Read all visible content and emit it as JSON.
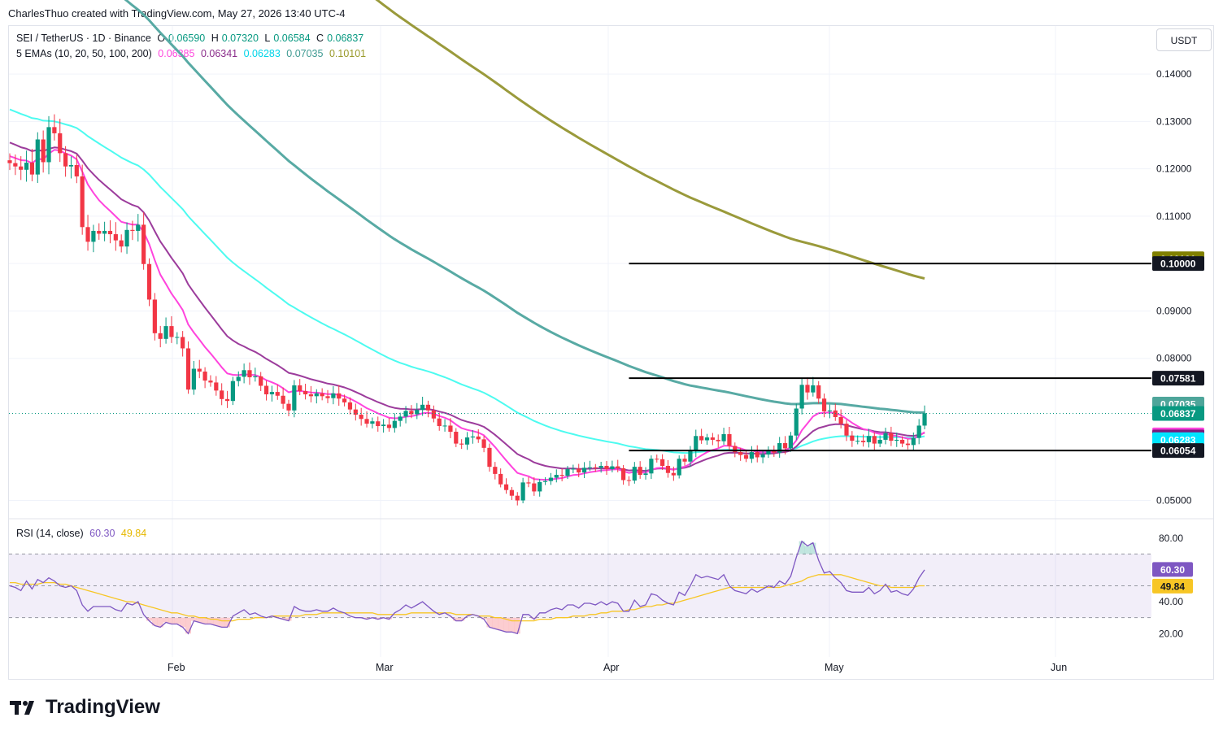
{
  "header": {
    "attribution": "CharlesThuo created with TradingView.com, May 27, 2026 13:40 UTC-4"
  },
  "legend": {
    "symbol_line": "SEI / TetherUS · 1D · Binance",
    "ohlc": {
      "O": "0.06590",
      "H": "0.07320",
      "L": "0.06584",
      "C": "0.06837"
    },
    "ema_label": "5 EMAs (10, 20, 50, 100, 200)",
    "ema_values": [
      "0.06385",
      "0.06341",
      "0.06283",
      "0.07035",
      "0.10101"
    ],
    "rsi_label": "RSI (14, close)",
    "rsi_values": [
      "60.30",
      "49.84"
    ]
  },
  "currency_button": "USDT",
  "logo_text": "TradingView",
  "colors": {
    "up": "#089981",
    "down": "#f23645",
    "ema10": "#ff44dd",
    "ema20": "#9c3c9c",
    "ema50": "#4dfbf0",
    "ema100": "#58aaa4",
    "ema200": "#9a9a3b",
    "rsi": "#7e57c2",
    "rsi_ma": "#f7c625"
  },
  "chart_data": [
    {
      "type": "candlestick",
      "title": "SEI / TetherUS · 1D · Binance",
      "ylim": [
        0.047,
        0.151
      ],
      "x_ticks": [
        "Feb",
        "Mar",
        "Apr",
        "May",
        "Jun"
      ],
      "y_ticks": [
        "0.14000",
        "0.13000",
        "0.12000",
        "0.11000",
        "0.10000",
        "0.09000",
        "0.08000",
        "0.05000"
      ],
      "price_tags": [
        {
          "label": "0.10101",
          "value": 0.10101,
          "color": "#808000"
        },
        {
          "label": "0.10000",
          "value": 0.1,
          "color": "#131722"
        },
        {
          "label": "0.07581",
          "value": 0.07581,
          "color": "#131722"
        },
        {
          "label": "0.07035",
          "value": 0.07035,
          "color": "#4ea59a"
        },
        {
          "label": "0.06837",
          "value": 0.06837,
          "color": "#089981"
        },
        {
          "label": "0.06385",
          "value": 0.06385,
          "color": "#ff44dd"
        },
        {
          "label": "0.06341",
          "value": 0.06341,
          "color": "#7b1a7b"
        },
        {
          "label": "0.06283",
          "value": 0.06283,
          "color": "#00e5ff"
        },
        {
          "label": "0.06054",
          "value": 0.06054,
          "color": "#131722"
        }
      ],
      "horizontal_lines": [
        {
          "value": 0.1,
          "from_day": 111
        },
        {
          "value": 0.07581,
          "from_day": 111
        },
        {
          "value": 0.06054,
          "from_day": 111
        }
      ],
      "last_close": 0.06837,
      "closes": [
        0.1212,
        0.1205,
        0.1198,
        0.1213,
        0.1188,
        0.1262,
        0.1214,
        0.1288,
        0.1275,
        0.1233,
        0.1205,
        0.1208,
        0.1184,
        0.1077,
        0.1046,
        0.1069,
        0.1063,
        0.1069,
        0.1062,
        0.1049,
        0.1036,
        0.1071,
        0.1069,
        0.1082,
        0.0999,
        0.0924,
        0.0853,
        0.0841,
        0.0868,
        0.0845,
        0.0845,
        0.0821,
        0.0734,
        0.0778,
        0.0772,
        0.0753,
        0.0749,
        0.0732,
        0.0714,
        0.071,
        0.0752,
        0.0761,
        0.0775,
        0.076,
        0.0762,
        0.0742,
        0.0724,
        0.0729,
        0.0721,
        0.0704,
        0.069,
        0.0743,
        0.0731,
        0.0724,
        0.072,
        0.0726,
        0.072,
        0.0716,
        0.0726,
        0.0715,
        0.0707,
        0.0692,
        0.0681,
        0.0672,
        0.0662,
        0.0667,
        0.0657,
        0.066,
        0.0653,
        0.0668,
        0.0677,
        0.0689,
        0.0682,
        0.0691,
        0.0702,
        0.069,
        0.0673,
        0.0657,
        0.0658,
        0.0645,
        0.062,
        0.0618,
        0.0633,
        0.0635,
        0.0629,
        0.0611,
        0.0571,
        0.0556,
        0.0534,
        0.0522,
        0.051,
        0.05,
        0.0538,
        0.0536,
        0.0519,
        0.0539,
        0.0541,
        0.0548,
        0.0554,
        0.0552,
        0.0566,
        0.0567,
        0.0559,
        0.0569,
        0.057,
        0.0569,
        0.0573,
        0.0566,
        0.0572,
        0.0568,
        0.0543,
        0.0542,
        0.0571,
        0.0554,
        0.0557,
        0.0588,
        0.0587,
        0.0573,
        0.0558,
        0.0553,
        0.0588,
        0.0582,
        0.0604,
        0.0636,
        0.0627,
        0.0633,
        0.0628,
        0.0625,
        0.064,
        0.0615,
        0.0602,
        0.0596,
        0.0588,
        0.0602,
        0.0591,
        0.0597,
        0.0605,
        0.0601,
        0.0621,
        0.061,
        0.0637,
        0.0694,
        0.0744,
        0.0728,
        0.0743,
        0.0715,
        0.0688,
        0.069,
        0.0676,
        0.0662,
        0.0637,
        0.0626,
        0.0626,
        0.0623,
        0.0636,
        0.062,
        0.0628,
        0.0642,
        0.0626,
        0.0628,
        0.062,
        0.0617,
        0.0632,
        0.0658,
        0.0684
      ],
      "series": [
        {
          "name": "EMA 10",
          "values": "computed from closes"
        },
        {
          "name": "EMA 20",
          "values": "computed from closes"
        },
        {
          "name": "EMA 50",
          "values": "computed from closes"
        },
        {
          "name": "EMA 100",
          "values": "computed from closes"
        },
        {
          "name": "EMA 200",
          "values": "computed from closes"
        }
      ]
    },
    {
      "type": "line",
      "title": "RSI (14, close)",
      "ylim": [
        14,
        86
      ],
      "y_ticks": [
        "80.00",
        "40.00",
        "20.00"
      ],
      "bands": [
        30,
        50,
        70
      ],
      "price_tags": [
        {
          "label": "60.30",
          "value": 60.3,
          "color": "#7e57c2"
        },
        {
          "label": "49.84",
          "value": 49.84,
          "color": "#f7c625"
        }
      ],
      "rsi": [
        50,
        49,
        47,
        53,
        48,
        54,
        52,
        55,
        53,
        50,
        49,
        50,
        47,
        38,
        34,
        37,
        37,
        37,
        37,
        35,
        34,
        39,
        38,
        40,
        32,
        28,
        25,
        24,
        27,
        26,
        26,
        24,
        20,
        28,
        27,
        26,
        26,
        25,
        24,
        24,
        31,
        33,
        35,
        32,
        33,
        31,
        30,
        31,
        30,
        29,
        28,
        37,
        35,
        34,
        34,
        35,
        34,
        34,
        36,
        34,
        33,
        31,
        30,
        30,
        29,
        30,
        29,
        30,
        29,
        33,
        35,
        38,
        36,
        38,
        40,
        37,
        34,
        32,
        33,
        31,
        28,
        28,
        31,
        32,
        31,
        29,
        24,
        23,
        22,
        21,
        21,
        20,
        32,
        32,
        29,
        33,
        33,
        35,
        36,
        35,
        38,
        38,
        36,
        39,
        39,
        38,
        40,
        38,
        40,
        39,
        34,
        34,
        41,
        37,
        38,
        45,
        44,
        41,
        39,
        38,
        46,
        44,
        50,
        57,
        55,
        56,
        55,
        54,
        57,
        50,
        47,
        46,
        45,
        48,
        46,
        48,
        50,
        49,
        53,
        51,
        56,
        68,
        78,
        75,
        77,
        66,
        58,
        59,
        55,
        52,
        47,
        46,
        46,
        46,
        49,
        45,
        47,
        51,
        46,
        47,
        45,
        44,
        48,
        55,
        60
      ],
      "rsi_ma": [
        52,
        52,
        51,
        51,
        51,
        51,
        52,
        52,
        52,
        51,
        51,
        50,
        49,
        48,
        47,
        46,
        45,
        44,
        43,
        42,
        41,
        40,
        40,
        39,
        38,
        37,
        36,
        35,
        34,
        33,
        33,
        32,
        31,
        31,
        30,
        30,
        29,
        29,
        28,
        28,
        28,
        29,
        29,
        29,
        30,
        30,
        30,
        31,
        31,
        31,
        31,
        31,
        31,
        32,
        32,
        32,
        33,
        33,
        33,
        33,
        33,
        33,
        33,
        33,
        33,
        33,
        32,
        32,
        32,
        32,
        32,
        32,
        33,
        33,
        33,
        33,
        33,
        33,
        33,
        33,
        32,
        32,
        32,
        32,
        31,
        31,
        31,
        30,
        30,
        29,
        28,
        28,
        28,
        28,
        28,
        29,
        29,
        29,
        30,
        30,
        30,
        31,
        31,
        31,
        32,
        32,
        33,
        33,
        34,
        34,
        34,
        35,
        35,
        36,
        37,
        37,
        38,
        38,
        39,
        39,
        40,
        41,
        42,
        43,
        44,
        45,
        46,
        47,
        48,
        49,
        49,
        49,
        49,
        49,
        49,
        49,
        49,
        49,
        49,
        50,
        51,
        52,
        53,
        55,
        56,
        57,
        57,
        57,
        57,
        57,
        56,
        55,
        54,
        53,
        52,
        51,
        50,
        50,
        49,
        49,
        49,
        49,
        49,
        50,
        50
      ]
    }
  ]
}
